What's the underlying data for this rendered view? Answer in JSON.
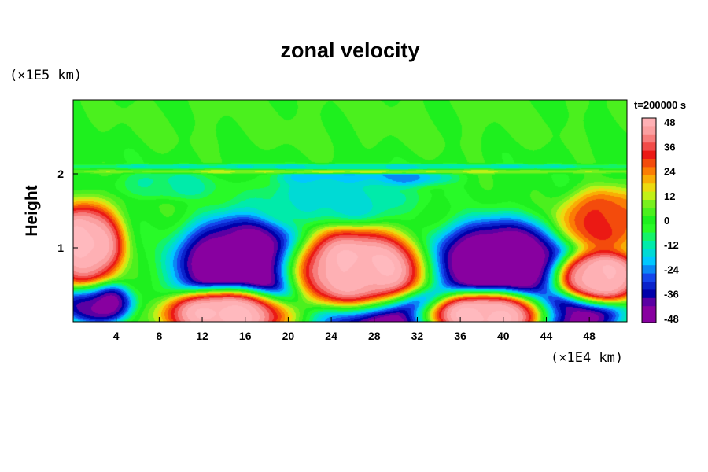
{
  "chart_data": {
    "type": "heatmap",
    "title": "zonal velocity",
    "ylabel": "Height",
    "x_unit": "(×1E4 km)",
    "y_unit": "(×1E5 km)",
    "time_label": "t=200000 s",
    "xlim": [
      0,
      51.5
    ],
    "ylim": [
      0,
      3
    ],
    "x_ticks": [
      "4",
      "8",
      "12",
      "16",
      "20",
      "24",
      "28",
      "32",
      "36",
      "40",
      "44",
      "48"
    ],
    "y_ticks": [
      "1",
      "2"
    ],
    "colorbar": {
      "min": -48,
      "max": 48,
      "step": 4,
      "ticks": [
        "48",
        "36",
        "24",
        "12",
        "0",
        "-12",
        "-24",
        "-36",
        "-48"
      ]
    },
    "background_value": 0,
    "features": [
      {
        "x": 15.5,
        "y": 0.75,
        "rx": 6.5,
        "ry": 0.72,
        "value": -50
      },
      {
        "x": 39.5,
        "y": 0.8,
        "rx": 6.8,
        "ry": 0.62,
        "value": -50
      },
      {
        "x": 31.2,
        "y": 0.05,
        "rx": 8.2,
        "ry": 0.38,
        "value": -50
      },
      {
        "x": 46.5,
        "y": 0.1,
        "rx": 4.8,
        "ry": 0.33,
        "value": -45
      },
      {
        "x": 2.2,
        "y": 0.25,
        "rx": 3.4,
        "ry": 0.3,
        "value": -45
      },
      {
        "x": 26.5,
        "y": 0.72,
        "rx": 6.4,
        "ry": 0.56,
        "value": 50
      },
      {
        "x": 14.2,
        "y": 0.1,
        "rx": 6.2,
        "ry": 0.36,
        "value": 50
      },
      {
        "x": 38.2,
        "y": 0.08,
        "rx": 6.0,
        "ry": 0.34,
        "value": 50
      },
      {
        "x": 1.2,
        "y": 1.05,
        "rx": 3.6,
        "ry": 0.6,
        "value": 50
      },
      {
        "x": 49.2,
        "y": 0.62,
        "rx": 4.2,
        "ry": 0.38,
        "value": 50
      },
      {
        "x": 49.5,
        "y": 1.38,
        "rx": 4.5,
        "ry": 0.45,
        "value": 30
      },
      {
        "x": 27.0,
        "y": 1.95,
        "rx": 8.0,
        "ry": 0.15,
        "value": -25
      },
      {
        "x": 24.0,
        "y": 1.65,
        "rx": 8.5,
        "ry": 0.32,
        "value": -15
      },
      {
        "x": 9.0,
        "y": 1.85,
        "rx": 5.5,
        "ry": 0.2,
        "value": -10
      },
      {
        "x": 26.0,
        "y": 2.1,
        "rx": 30.0,
        "ry": 0.04,
        "value": -14
      },
      {
        "x": 26.0,
        "y": 2.03,
        "rx": 30.0,
        "ry": 0.03,
        "value": 10
      },
      {
        "x": 26.0,
        "y": 2.75,
        "rx": 30.0,
        "ry": 0.5,
        "value": 3
      }
    ]
  }
}
